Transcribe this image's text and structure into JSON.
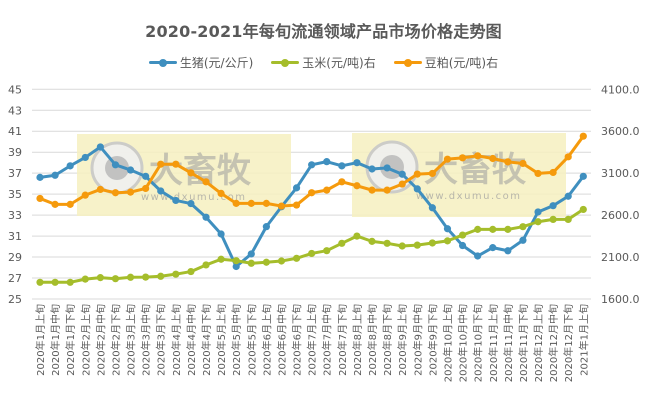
{
  "title": "2020-2021年每旬流通领域产品市场价格走势图",
  "legend": [
    {
      "name": "生猪(元/公斤)",
      "color": "#3f8fbf"
    },
    {
      "name": "玉米(元/吨)右",
      "color": "#a5bd2b"
    },
    {
      "name": "豆粕(元/吨)右",
      "color": "#f59a0c"
    }
  ],
  "watermark": {
    "text": "大畜牧",
    "url": "www.dxumu.com",
    "box_color": "#f6f0c0"
  },
  "chart_data": {
    "type": "line",
    "title": "2020-2021年每旬流通领域产品市场价格走势图",
    "xlabel": "",
    "ylabel": "",
    "ylabel_right": "",
    "ylim": [
      25,
      45
    ],
    "ylim_right": [
      1600,
      4100
    ],
    "yticks": [
      25,
      27,
      29,
      31,
      33,
      35,
      37,
      39,
      41,
      43,
      45
    ],
    "yticks_right": [
      "1600.0",
      "2100.0",
      "2600.0",
      "3100.0",
      "3600.0",
      "4100.0"
    ],
    "grid": true,
    "legend_position": "top",
    "categories": [
      "2020年1月上旬",
      "2020年1月中旬",
      "2020年1月下旬",
      "2020年2月上旬",
      "2020年2月中旬",
      "2020年2月下旬",
      "2020年3月上旬",
      "2020年3月中旬",
      "2020年3月下旬",
      "2020年4月上旬",
      "2020年4月中旬",
      "2020年4月下旬",
      "2020年5月上旬",
      "2020年5月中旬",
      "2020年5月下旬",
      "2020年6月上旬",
      "2020年6月中旬",
      "2020年6月下旬",
      "2020年7月上旬",
      "2020年7月中旬",
      "2020年7月下旬",
      "2020年8月上旬",
      "2020年8月中旬",
      "2020年8月下旬",
      "2020年9月上旬",
      "2020年9月中旬",
      "2020年9月下旬",
      "2020年10月上旬",
      "2020年10月中旬",
      "2020年10月下旬",
      "2020年11月上旬",
      "2020年11月中旬",
      "2020年11月下旬",
      "2020年12月上旬",
      "2020年12月中旬",
      "2020年12月下旬",
      "2021年1月上旬"
    ],
    "series": [
      {
        "name": "生猪(元/公斤)",
        "axis": "left",
        "color": "#3f8fbf",
        "values": [
          36.6,
          36.8,
          37.7,
          38.5,
          39.5,
          37.8,
          37.3,
          36.7,
          35.3,
          34.4,
          34.1,
          32.8,
          31.2,
          28.1,
          29.3,
          31.9,
          33.8,
          35.6,
          37.8,
          38.1,
          37.7,
          38.0,
          37.4,
          37.5,
          36.9,
          35.5,
          33.7,
          31.7,
          30.1,
          29.1,
          29.9,
          29.6,
          30.6,
          33.3,
          33.9,
          34.8,
          36.7
        ]
      },
      {
        "name": "玉米(元/吨)右",
        "axis": "right",
        "color": "#a5bd2b",
        "values": [
          1799,
          1799,
          1799,
          1837,
          1855,
          1842,
          1859,
          1861,
          1871,
          1896,
          1927,
          2006,
          2074,
          2057,
          2026,
          2038,
          2053,
          2085,
          2143,
          2176,
          2264,
          2350,
          2287,
          2264,
          2232,
          2242,
          2268,
          2293,
          2362,
          2430,
          2430,
          2430,
          2462,
          2521,
          2549,
          2549,
          2668
        ]
      },
      {
        "name": "豆粕(元/吨)右",
        "axis": "right",
        "color": "#f59a0c",
        "values": [
          2799,
          2728,
          2728,
          2838,
          2906,
          2867,
          2874,
          2918,
          3207,
          3207,
          3104,
          2997,
          2859,
          2740,
          2740,
          2740,
          2708,
          2720,
          2867,
          2898,
          2997,
          2950,
          2898,
          2898,
          2970,
          3089,
          3097,
          3267,
          3283,
          3307,
          3275,
          3235,
          3216,
          3097,
          3109,
          3295,
          3541
        ]
      }
    ]
  }
}
